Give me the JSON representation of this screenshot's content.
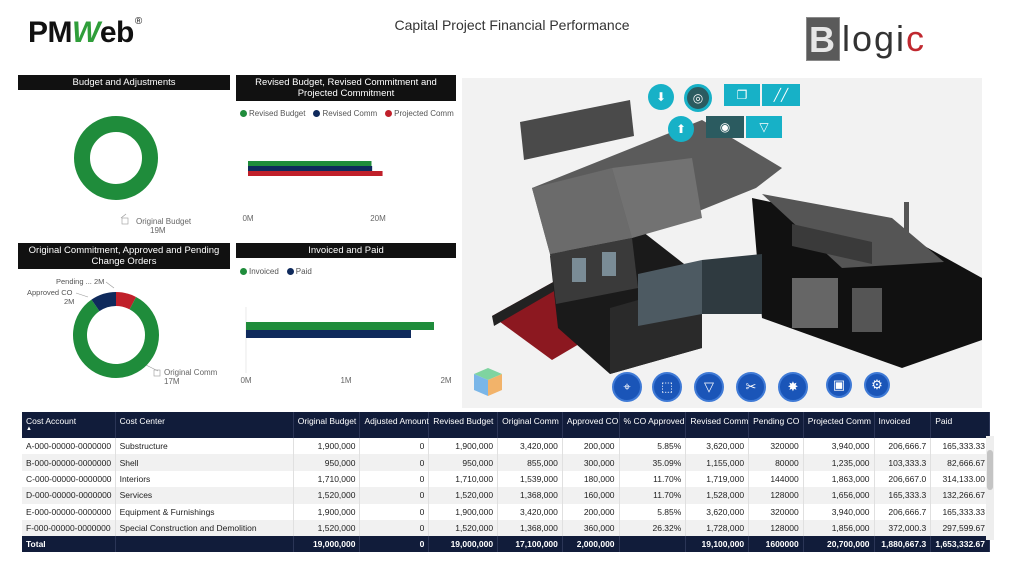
{
  "header": {
    "logo_left": "PMWeb",
    "logo_left_parts": {
      "a": "PM",
      "w": "W",
      "b": "eb",
      "reg": "®"
    },
    "title": "Capital Project Financial Performance",
    "logo_right_parts": {
      "b": "B",
      "mid": "logi",
      "c": "c"
    }
  },
  "colors": {
    "green": "#1f8c3b",
    "navy": "#0f2a5c",
    "red": "#c0202a",
    "teal": "#17b1c7",
    "blue": "#1a55b8"
  },
  "charts": {
    "budget": {
      "title": "Budget and Adjustments",
      "label_name": "Original Budget",
      "label_value": "19M",
      "chart_data": {
        "type": "pie",
        "categories": [
          "Original Budget"
        ],
        "values": [
          19
        ]
      }
    },
    "revised": {
      "title_line1": "Revised Budget, Revised Commitment and",
      "title_line2": "Projected Commitment",
      "legend": [
        "Revised Budget",
        "Revised Comm",
        "Projected Comm"
      ],
      "ticks": [
        "0M",
        "20M"
      ],
      "chart_data": {
        "type": "bar",
        "series": [
          {
            "name": "Revised Budget",
            "values": [
              19.0
            ]
          },
          {
            "name": "Revised Comm",
            "values": [
              19.1
            ]
          },
          {
            "name": "Projected Comm",
            "values": [
              20.7
            ]
          }
        ],
        "xlim": [
          0,
          20
        ]
      }
    },
    "commitment": {
      "title_line1": "Original Commitment, Approved and Pending",
      "title_line2": "Change Orders",
      "labels": {
        "pending": "Pending ... 2M",
        "approved": "Approved CO",
        "approved_value": "2M",
        "original": "Original Comm",
        "original_value": "17M"
      },
      "chart_data": {
        "type": "pie",
        "categories": [
          "Original Comm",
          "Approved CO",
          "Pending CO"
        ],
        "values": [
          17.1,
          2.0,
          1.6
        ]
      }
    },
    "invoiced": {
      "title": "Invoiced and Paid",
      "legend": [
        "Invoiced",
        "Paid"
      ],
      "ticks": [
        "0M",
        "1M",
        "2M"
      ],
      "chart_data": {
        "type": "bar",
        "series": [
          {
            "name": "Invoiced",
            "values": [
              1.88
            ]
          },
          {
            "name": "Paid",
            "values": [
              1.65
            ]
          }
        ],
        "xlim": [
          0,
          2
        ]
      }
    }
  },
  "viewer": {
    "top_icons": [
      "download-icon",
      "target-icon",
      "copy-icon",
      "hatch-icon",
      "upload-icon",
      "focus-icon",
      "filter-icon"
    ],
    "toolbar_icons": [
      "fit-view-icon",
      "select-box-icon",
      "clear-filter-icon",
      "scissors-icon",
      "navigate-icon",
      "camera-icon",
      "settings-icon"
    ]
  },
  "table": {
    "columns": [
      "Cost Account",
      "Cost Center",
      "Original Budget",
      "Adjusted Amount",
      "Revised Budget",
      "Original Comm",
      "Approved CO",
      "% CO Approved",
      "Revised Comm",
      "Pending CO",
      "Projected Comm",
      "Invoiced",
      "Paid"
    ],
    "rows": [
      [
        "A-000-00000-0000000",
        "Substructure",
        "1,900,000",
        "0",
        "1,900,000",
        "3,420,000",
        "200,000",
        "5.85%",
        "3,620,000",
        "320000",
        "3,940,000",
        "206,666.7",
        "165,333.33"
      ],
      [
        "B-000-00000-0000000",
        "Shell",
        "950,000",
        "0",
        "950,000",
        "855,000",
        "300,000",
        "35.09%",
        "1,155,000",
        "80000",
        "1,235,000",
        "103,333.3",
        "82,666.67"
      ],
      [
        "C-000-00000-0000000",
        "Interiors",
        "1,710,000",
        "0",
        "1,710,000",
        "1,539,000",
        "180,000",
        "11.70%",
        "1,719,000",
        "144000",
        "1,863,000",
        "206,667.0",
        "314,133.00"
      ],
      [
        "D-000-00000-0000000",
        "Services",
        "1,520,000",
        "0",
        "1,520,000",
        "1,368,000",
        "160,000",
        "11.70%",
        "1,528,000",
        "128000",
        "1,656,000",
        "165,333.3",
        "132,266.67"
      ],
      [
        "E-000-00000-0000000",
        "Equipment & Furnishings",
        "1,900,000",
        "0",
        "1,900,000",
        "3,420,000",
        "200,000",
        "5.85%",
        "3,620,000",
        "320000",
        "3,940,000",
        "206,666.7",
        "165,333.33"
      ],
      [
        "F-000-00000-0000000",
        "Special Construction and Demolition",
        "1,520,000",
        "0",
        "1,520,000",
        "1,368,000",
        "360,000",
        "26.32%",
        "1,728,000",
        "128000",
        "1,856,000",
        "372,000.3",
        "297,599.67"
      ]
    ],
    "total": [
      "Total",
      "",
      "19,000,000",
      "0",
      "19,000,000",
      "17,100,000",
      "2,000,000",
      "",
      "19,100,000",
      "1600000",
      "20,700,000",
      "1,880,667.3",
      "1,653,332.67"
    ]
  }
}
